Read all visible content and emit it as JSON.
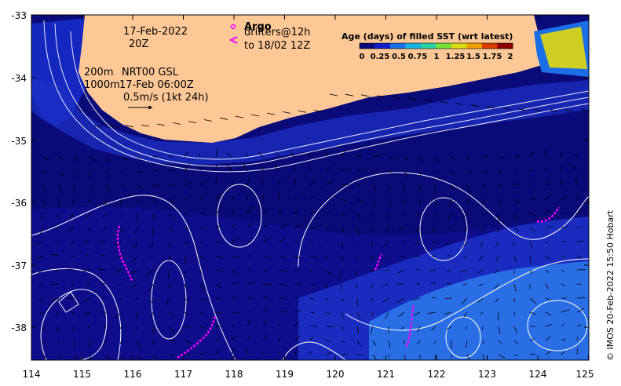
{
  "map": {
    "date_line1": "17-Feb-2022",
    "date_line2": "20Z",
    "contour_label_1": "200m",
    "contour_label_2": "1000m",
    "product_label": "NRT00 GSL",
    "product_time": "17-Feb 06:00Z",
    "scale_label": "0.5m/s (1kt 24h)",
    "legend": {
      "argo_label": "Argo",
      "drifters_label": "drifters@12h",
      "drifters_range": "to 18/02 12Z",
      "argo_color": "#ff00ff"
    },
    "colorbar": {
      "title": "Age (days) of filled SST (wrt latest)",
      "tick_labels": [
        "0",
        "0.25",
        "0.5",
        "0.75",
        "1",
        "1.25",
        "1.5",
        "1.75",
        "2"
      ],
      "colors": [
        "#0a0a7a",
        "#1020c8",
        "#1c6ee6",
        "#18b4e6",
        "#2ad2a6",
        "#78de38",
        "#d8dc10",
        "#f0a000",
        "#d83c00",
        "#8c0000"
      ]
    },
    "credit": "© IMOS 20-Feb-2022 15:50 Hobart",
    "x_ticks": [
      "114",
      "115",
      "116",
      "117",
      "118",
      "119",
      "120",
      "121",
      "122",
      "123",
      "124",
      "125"
    ],
    "y_ticks": [
      "-33",
      "-34",
      "-35",
      "-36",
      "-37",
      "-38"
    ],
    "colors": {
      "land": "#fdc896",
      "ocean_dark": "#0a0a78",
      "ocean_mid": "#1020b4",
      "ocean_light": "#2a6ee6",
      "drifter": "#ff00ff"
    }
  }
}
